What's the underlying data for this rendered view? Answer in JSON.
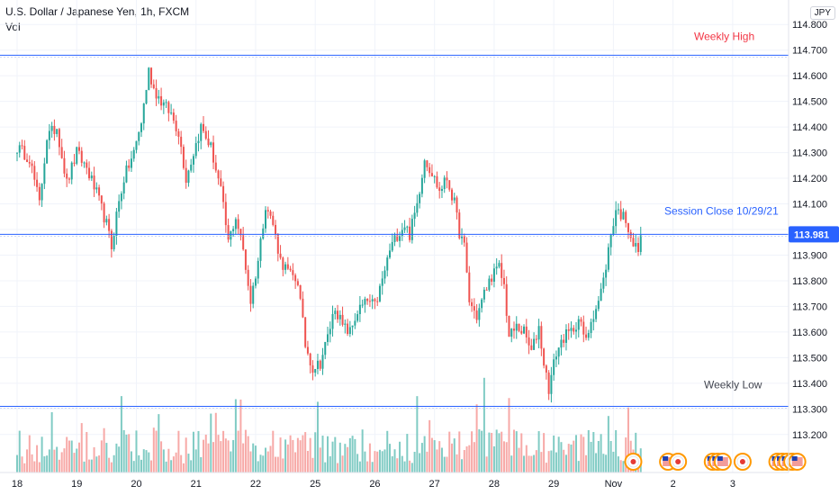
{
  "header": {
    "title": "U.S. Dollar / Japanese Yen, 1h, FXCM",
    "volume_label": "Vol"
  },
  "currency_box": "JPY",
  "colors": {
    "up": "#26a69a",
    "down": "#ef5350",
    "up_vol": "#80cbc4",
    "down_vol": "#f7a9a7",
    "level_line": "#2962ff",
    "weekly_high_text": "#f23645",
    "session_close_text": "#2962ff",
    "weekly_low_text": "#434651",
    "price_badge": "#2962ff"
  },
  "chart_data": {
    "type": "candlestick",
    "symbol": "USDJPY",
    "timeframe": "1h",
    "source": "FXCM",
    "ylim": [
      113.15,
      114.85
    ],
    "y_ticks": [
      "113.200",
      "113.300",
      "113.400",
      "113.500",
      "113.600",
      "113.700",
      "113.800",
      "113.900",
      "114.000",
      "114.100",
      "114.200",
      "114.300",
      "114.400",
      "114.500",
      "114.600",
      "114.700",
      "114.800"
    ],
    "x_ticks": [
      {
        "label": "18",
        "bar": 0
      },
      {
        "label": "19",
        "bar": 24
      },
      {
        "label": "20",
        "bar": 48
      },
      {
        "label": "21",
        "bar": 72
      },
      {
        "label": "22",
        "bar": 96
      },
      {
        "label": "25",
        "bar": 120
      },
      {
        "label": "26",
        "bar": 144
      },
      {
        "label": "27",
        "bar": 168
      },
      {
        "label": "28",
        "bar": 192
      },
      {
        "label": "29",
        "bar": 216
      },
      {
        "label": "Nov",
        "bar": 240
      },
      {
        "label": "2",
        "bar": 264
      },
      {
        "label": "3",
        "bar": 288
      }
    ],
    "horizontal_lines": [
      {
        "name": "Weekly High",
        "value": 114.68,
        "label": "Weekly High"
      },
      {
        "name": "Session Close",
        "value": 113.981,
        "label": "Session Close 10/29/21"
      },
      {
        "name": "Weekly Low",
        "value": 113.31,
        "label": "Weekly Low"
      }
    ],
    "last_price": "113.981",
    "anchors": [
      [
        0,
        114.32
      ],
      [
        5,
        114.28
      ],
      [
        9,
        114.1
      ],
      [
        12,
        114.36
      ],
      [
        16,
        114.4
      ],
      [
        20,
        114.18
      ],
      [
        24,
        114.3
      ],
      [
        28,
        114.24
      ],
      [
        32,
        114.14
      ],
      [
        36,
        114.02
      ],
      [
        38,
        113.93
      ],
      [
        40,
        114.06
      ],
      [
        43,
        114.2
      ],
      [
        47,
        114.3
      ],
      [
        50,
        114.42
      ],
      [
        53,
        114.62
      ],
      [
        55,
        114.55
      ],
      [
        58,
        114.5
      ],
      [
        62,
        114.45
      ],
      [
        65,
        114.38
      ],
      [
        68,
        114.2
      ],
      [
        71,
        114.3
      ],
      [
        74,
        114.4
      ],
      [
        78,
        114.32
      ],
      [
        82,
        114.15
      ],
      [
        85,
        113.95
      ],
      [
        88,
        114.05
      ],
      [
        91,
        113.92
      ],
      [
        94,
        113.72
      ],
      [
        97,
        113.88
      ],
      [
        100,
        114.1
      ],
      [
        103,
        114.02
      ],
      [
        106,
        113.88
      ],
      [
        110,
        113.82
      ],
      [
        113,
        113.8
      ],
      [
        116,
        113.55
      ],
      [
        119,
        113.46
      ],
      [
        122,
        113.48
      ],
      [
        125,
        113.58
      ],
      [
        128,
        113.7
      ],
      [
        131,
        113.62
      ],
      [
        134,
        113.6
      ],
      [
        137,
        113.68
      ],
      [
        141,
        113.72
      ],
      [
        144,
        113.7
      ],
      [
        147,
        113.8
      ],
      [
        150,
        113.92
      ],
      [
        153,
        113.98
      ],
      [
        156,
        114.02
      ],
      [
        158,
        113.98
      ],
      [
        161,
        114.1
      ],
      [
        164,
        114.28
      ],
      [
        167,
        114.22
      ],
      [
        170,
        114.15
      ],
      [
        173,
        114.2
      ],
      [
        176,
        114.1
      ],
      [
        178,
        113.99
      ],
      [
        180,
        113.93
      ],
      [
        182,
        113.72
      ],
      [
        185,
        113.66
      ],
      [
        188,
        113.75
      ],
      [
        191,
        113.82
      ],
      [
        194,
        113.85
      ],
      [
        196,
        113.78
      ],
      [
        198,
        113.58
      ],
      [
        201,
        113.62
      ],
      [
        204,
        113.6
      ],
      [
        207,
        113.52
      ],
      [
        210,
        113.62
      ],
      [
        212,
        113.48
      ],
      [
        214,
        113.38
      ],
      [
        217,
        113.52
      ],
      [
        220,
        113.58
      ],
      [
        223,
        113.6
      ],
      [
        226,
        113.65
      ],
      [
        229,
        113.56
      ],
      [
        231,
        113.65
      ],
      [
        234,
        113.72
      ],
      [
        236,
        113.8
      ],
      [
        239,
        113.98
      ],
      [
        241,
        114.08
      ],
      [
        243,
        114.06
      ],
      [
        245,
        114.04
      ],
      [
        247,
        113.98
      ],
      [
        248,
        113.94
      ],
      [
        250,
        113.92
      ],
      [
        251,
        113.96
      ]
    ],
    "events": [
      {
        "bar": 248,
        "type": "jp"
      },
      {
        "bar": 262,
        "type": "us"
      },
      {
        "bar": 266,
        "type": "jp"
      },
      {
        "bar": 280,
        "type": "us"
      },
      {
        "bar": 282,
        "type": "us"
      },
      {
        "bar": 284,
        "type": "us"
      },
      {
        "bar": 292,
        "type": "jp"
      },
      {
        "bar": 306,
        "type": "us"
      },
      {
        "bar": 308,
        "type": "us"
      },
      {
        "bar": 310,
        "type": "us"
      },
      {
        "bar": 312,
        "type": "jp"
      },
      {
        "bar": 314,
        "type": "us"
      }
    ]
  }
}
